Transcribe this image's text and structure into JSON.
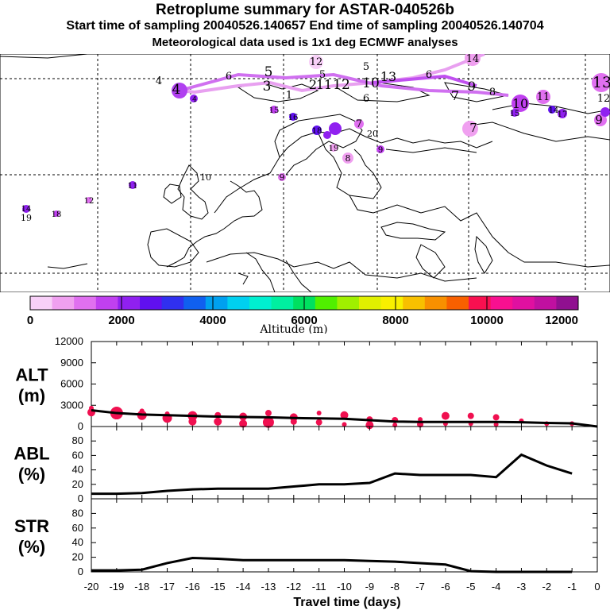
{
  "titles": {
    "line1": "Retroplume summary for ASTAR-040526b",
    "line2": "Start time of sampling 20040526.140657     End time of sampling 20040526.140704",
    "line3": "Meteorological data used is 1x1 deg ECMWF analyses"
  },
  "colorbar": {
    "label": "Altitude (m)",
    "ticks": [
      "0",
      "2000",
      "4000",
      "6000",
      "8000",
      "10000",
      "12000"
    ],
    "colors": [
      "#f8d0f8",
      "#f0a0f0",
      "#e070f0",
      "#c040f0",
      "#9020f0",
      "#6010f0",
      "#3030f0",
      "#1060f0",
      "#00a0f0",
      "#00d0f0",
      "#00f0d0",
      "#00f0a0",
      "#00e060",
      "#50f000",
      "#a0f000",
      "#e0f000",
      "#f8f000",
      "#f8c000",
      "#f89000",
      "#f86000",
      "#f81050",
      "#f81090",
      "#e010a0",
      "#c010a0",
      "#901090"
    ]
  },
  "map": {
    "plume_labels": [
      "12",
      "5",
      "14",
      "4",
      "5",
      "6",
      "5",
      "3",
      "4",
      "2",
      "1",
      "11",
      "12",
      "10",
      "13",
      "6",
      "9",
      "7",
      "8",
      "10",
      "11",
      "13",
      "12",
      "9",
      "4",
      "6",
      "15",
      "14",
      "16",
      "15",
      "17",
      "7",
      "7",
      "20",
      "18",
      "19",
      "9",
      "8",
      "10",
      "11",
      "12",
      "9",
      "19",
      "18",
      "14"
    ]
  },
  "chart_data": {
    "type": "line",
    "x": [
      -20,
      -19,
      -18,
      -17,
      -16,
      -15,
      -14,
      -13,
      -12,
      -11,
      -10,
      -9,
      -8,
      -7,
      -6,
      -5,
      -4,
      -3,
      -2,
      -1,
      0
    ],
    "xlabel": "Travel time (days)",
    "xticks": [
      "-20",
      "-19",
      "-18",
      "-17",
      "-16",
      "-15",
      "-14",
      "-13",
      "-12",
      "-11",
      "-10",
      "-9",
      "-8",
      "-7",
      "-6",
      "-5",
      "-4",
      "-3",
      "-2",
      "-1",
      "0"
    ],
    "panels": [
      {
        "name": "ALT",
        "unit": "(m)",
        "ylim": [
          0,
          12000
        ],
        "yticks": [
          "0",
          "3000",
          "6000",
          "9000",
          "12000"
        ],
        "line": [
          2300,
          1900,
          1700,
          1600,
          1500,
          1400,
          1350,
          1300,
          1200,
          1150,
          1100,
          900,
          700,
          650,
          650,
          650,
          650,
          600,
          500,
          450,
          0
        ],
        "dots": [
          {
            "x": -20,
            "y": 2000,
            "r": 5
          },
          {
            "x": -20,
            "y": 2600,
            "r": 3
          },
          {
            "x": -19,
            "y": 1900,
            "r": 8
          },
          {
            "x": -19,
            "y": 1700,
            "r": 6
          },
          {
            "x": -18,
            "y": 1600,
            "r": 6
          },
          {
            "x": -18,
            "y": 2200,
            "r": 3
          },
          {
            "x": -17,
            "y": 1200,
            "r": 6
          },
          {
            "x": -17,
            "y": 1800,
            "r": 3
          },
          {
            "x": -16,
            "y": 700,
            "r": 5
          },
          {
            "x": -16,
            "y": 1500,
            "r": 6
          },
          {
            "x": -15,
            "y": 700,
            "r": 5
          },
          {
            "x": -15,
            "y": 1600,
            "r": 4
          },
          {
            "x": -14,
            "y": 400,
            "r": 5
          },
          {
            "x": -14,
            "y": 1400,
            "r": 5
          },
          {
            "x": -13,
            "y": 600,
            "r": 7
          },
          {
            "x": -13,
            "y": 1900,
            "r": 4
          },
          {
            "x": -12,
            "y": 1300,
            "r": 5
          },
          {
            "x": -12,
            "y": 700,
            "r": 4
          },
          {
            "x": -11,
            "y": 1900,
            "r": 3
          },
          {
            "x": -11,
            "y": 600,
            "r": 4
          },
          {
            "x": -10,
            "y": 1600,
            "r": 5
          },
          {
            "x": -10,
            "y": 300,
            "r": 3
          },
          {
            "x": -9,
            "y": 1000,
            "r": 4
          },
          {
            "x": -9,
            "y": 200,
            "r": 5
          },
          {
            "x": -8,
            "y": 900,
            "r": 4
          },
          {
            "x": -8,
            "y": 200,
            "r": 3
          },
          {
            "x": -7,
            "y": 1000,
            "r": 3
          },
          {
            "x": -7,
            "y": 300,
            "r": 4
          },
          {
            "x": -6,
            "y": 1500,
            "r": 5
          },
          {
            "x": -6,
            "y": 400,
            "r": 3
          },
          {
            "x": -5,
            "y": 1500,
            "r": 4
          },
          {
            "x": -5,
            "y": 400,
            "r": 3
          },
          {
            "x": -4,
            "y": 1300,
            "r": 4
          },
          {
            "x": -4,
            "y": 300,
            "r": 3
          },
          {
            "x": -3,
            "y": 800,
            "r": 3
          },
          {
            "x": -2,
            "y": 400,
            "r": 3
          },
          {
            "x": -1,
            "y": 400,
            "r": 3
          }
        ]
      },
      {
        "name": "ABL",
        "unit": "(%)",
        "ylim": [
          0,
          100
        ],
        "yticks": [
          "0",
          "20",
          "40",
          "60",
          "80"
        ],
        "line": [
          7,
          7,
          8,
          11,
          13,
          14,
          14,
          14,
          17,
          20,
          20,
          22,
          35,
          33,
          33,
          33,
          30,
          61,
          46,
          35,
          null
        ]
      },
      {
        "name": "STR",
        "unit": "(%)",
        "ylim": [
          0,
          100
        ],
        "yticks": [
          "0",
          "20",
          "40",
          "60",
          "80"
        ],
        "line": [
          2,
          2,
          3,
          12,
          19,
          18,
          16,
          16,
          16,
          16,
          16,
          15,
          14,
          12,
          10,
          1,
          0,
          0,
          0,
          0,
          null
        ]
      }
    ]
  }
}
